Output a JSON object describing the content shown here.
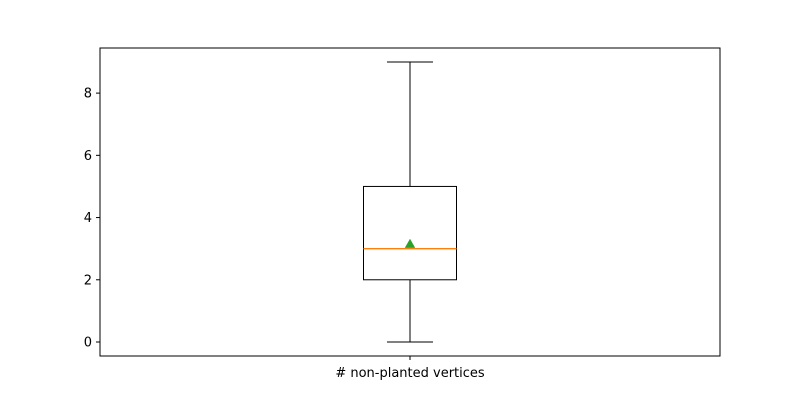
{
  "chart_data": {
    "type": "box",
    "categories": [
      "# non-planted vertices"
    ],
    "boxes": [
      {
        "category": "# non-planted vertices",
        "whisker_low": 0,
        "q1": 2,
        "median": 3,
        "mean": 3.15,
        "q3": 5,
        "whisker_high": 9
      }
    ],
    "y_ticks": [
      "0",
      "2",
      "4",
      "6",
      "8"
    ],
    "ylim": [
      -0.45,
      9.45
    ],
    "grid": false,
    "colors": {
      "box": "#000000",
      "median": "#ff7f0e",
      "mean": "#2ca02c"
    }
  }
}
